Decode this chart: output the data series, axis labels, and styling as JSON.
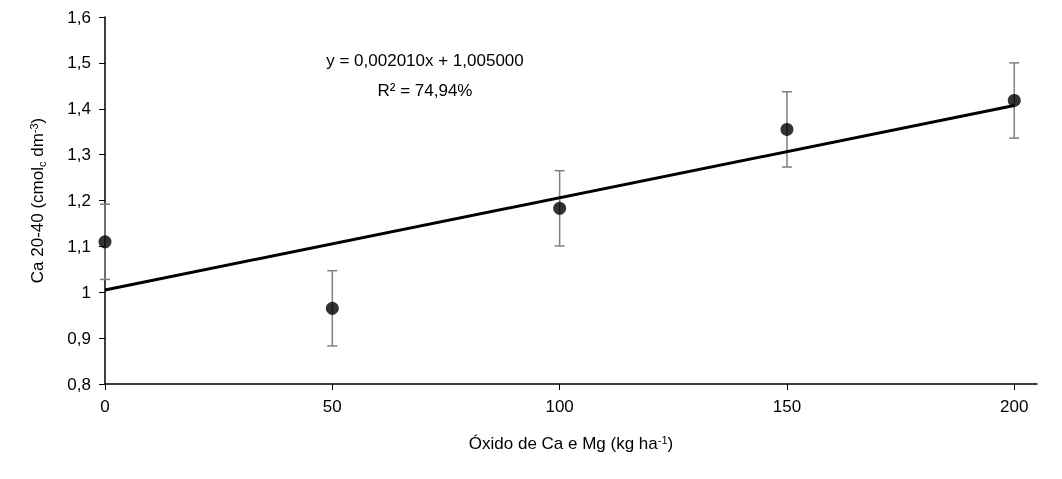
{
  "chart_data": {
    "type": "scatter",
    "xlabel": "Óxido de Ca e Mg (kg ha$^{-1}$)",
    "ylabel": "Ca 20-40 (cmol$_{c}$ dm$^{-3}$)",
    "annotations": [
      "y = 0,002010x + 1,005000",
      "R² = 74,94%"
    ],
    "x": [
      0,
      50,
      100,
      150,
      200
    ],
    "series": [
      {
        "color": "#000000",
        "values": [
          1.11,
          0.965,
          1.183,
          1.355,
          1.418
        ],
        "errors": [
          0.082,
          0.082,
          0.082,
          0.082,
          0.082
        ]
      },
      {
        "type": "line",
        "color": "#000000",
        "x": [
          0,
          200
        ],
        "values": [
          1.005,
          1.407
        ],
        "marker": "none",
        "line_style": "solid"
      }
    ],
    "xlim": [
      0,
      205
    ],
    "xticks": [
      0,
      50,
      100,
      150,
      200
    ],
    "ylim": [
      0.8,
      1.6
    ],
    "yticks": [
      {
        "value": 0.8,
        "label": "0,8"
      },
      {
        "value": 0.9,
        "label": "0,9"
      },
      {
        "value": 1,
        "label": "1"
      },
      {
        "value": 1.1,
        "label": "1,1"
      },
      {
        "value": 1.2,
        "label": "1,2"
      },
      {
        "value": 1.3,
        "label": "1,3"
      },
      {
        "value": 1.4,
        "label": "1,4"
      },
      {
        "value": 1.5,
        "label": "1,5"
      },
      {
        "value": 1.6,
        "label": "1,6"
      }
    ],
    "grid": false,
    "marker": "circle"
  }
}
